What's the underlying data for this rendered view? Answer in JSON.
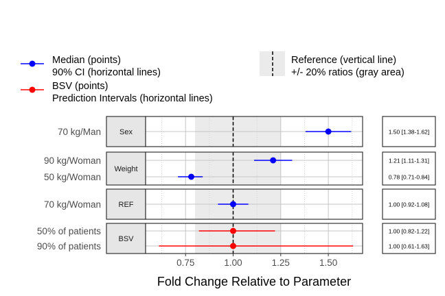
{
  "chart_data": {
    "type": "forest",
    "title": "",
    "xlabel": "Fold Change Relative to Parameter",
    "xlim": [
      0.54,
      1.68
    ],
    "xticks": [
      0.75,
      1.0,
      1.25,
      1.5
    ],
    "xtick_labels": [
      "0.75",
      "1.00",
      "1.25",
      "1.50"
    ],
    "reference": 1.0,
    "reference_band": [
      0.8,
      1.25
    ],
    "legend": {
      "position": "top",
      "items": [
        {
          "key": "median",
          "line1": "Median (points)",
          "line2": "90% CI (horizontal lines)",
          "color": "#0000ff"
        },
        {
          "key": "bsv",
          "line1": "BSV (points)",
          "line2": "Prediction Intervals (horizontal lines)",
          "color": "#ff0000"
        },
        {
          "key": "reference",
          "line1": "Reference (vertical line)",
          "line2": "+/- 20% ratios (gray area)",
          "color": "#000000"
        }
      ]
    },
    "panels": [
      {
        "strip": "Sex",
        "rows": [
          {
            "label": "70 kg/Man",
            "median": 1.5,
            "low": 1.38,
            "high": 1.62,
            "series": "median",
            "text": "1.50 [1.38-1.62]"
          }
        ]
      },
      {
        "strip": "Weight",
        "rows": [
          {
            "label": "90 kg/Woman",
            "median": 1.21,
            "low": 1.11,
            "high": 1.31,
            "series": "median",
            "text": "1.21 [1.11-1.31]"
          },
          {
            "label": "50 kg/Woman",
            "median": 0.78,
            "low": 0.71,
            "high": 0.84,
            "series": "median",
            "text": "0.78 [0.71-0.84]"
          }
        ]
      },
      {
        "strip": "REF",
        "rows": [
          {
            "label": "70 kg/Woman",
            "median": 1.0,
            "low": 0.92,
            "high": 1.08,
            "series": "median",
            "text": "1.00 [0.92-1.08]"
          }
        ]
      },
      {
        "strip": "BSV",
        "rows": [
          {
            "label": "50% of patients",
            "median": 1.0,
            "low": 0.82,
            "high": 1.22,
            "series": "bsv",
            "text": "1.00 [0.82-1.22]"
          },
          {
            "label": "90% of patients",
            "median": 1.0,
            "low": 0.61,
            "high": 1.63,
            "series": "bsv",
            "text": "1.00 [0.61-1.63]"
          }
        ]
      }
    ]
  }
}
